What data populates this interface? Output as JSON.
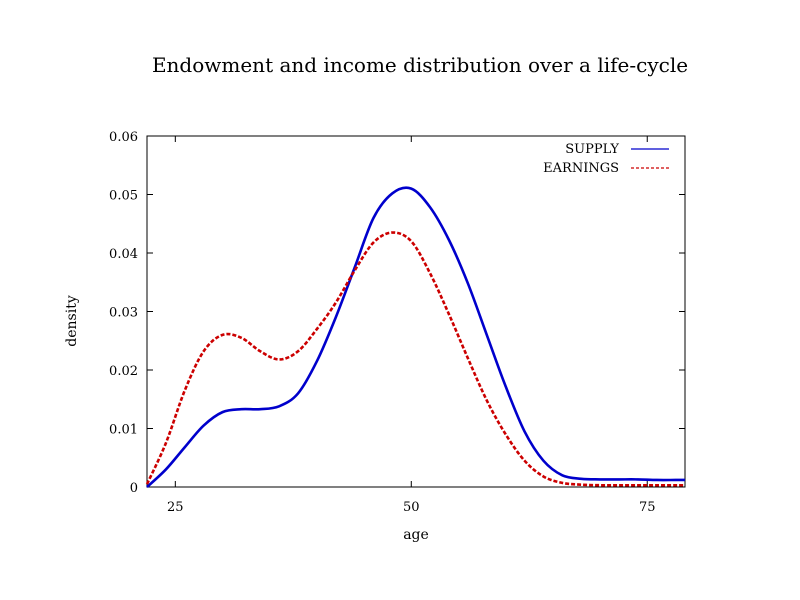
{
  "chart_data": {
    "type": "line",
    "title": "Endowment and income distribution over a life-cycle",
    "xlabel": "age",
    "ylabel": "density",
    "xlim": [
      22,
      79
    ],
    "ylim": [
      0,
      0.06
    ],
    "xticks": [
      25,
      50,
      75
    ],
    "yticks": [
      0,
      0.01,
      0.02,
      0.03,
      0.04,
      0.05,
      0.06
    ],
    "ytick_labels": [
      "0",
      "0.01",
      "0.02",
      "0.03",
      "0.04",
      "0.05",
      "0.06"
    ],
    "grid": false,
    "legend_position": "top-right",
    "x": [
      22,
      24,
      26,
      28,
      30,
      32,
      34,
      36,
      38,
      40,
      42,
      44,
      46,
      48,
      50,
      52,
      54,
      56,
      58,
      60,
      62,
      64,
      66,
      68,
      70,
      72,
      74,
      76,
      78,
      79
    ],
    "series": [
      {
        "name": "SUPPLY",
        "color": "#0000cc",
        "dash": "solid",
        "values": [
          0.0,
          0.003,
          0.0068,
          0.0105,
          0.0128,
          0.0133,
          0.0133,
          0.0138,
          0.016,
          0.0215,
          0.029,
          0.0375,
          0.046,
          0.0502,
          0.051,
          0.0478,
          0.0422,
          0.0348,
          0.026,
          0.0172,
          0.0095,
          0.0045,
          0.002,
          0.0014,
          0.0013,
          0.0013,
          0.0013,
          0.0012,
          0.0012,
          0.0012
        ]
      },
      {
        "name": "EARNINGS",
        "color": "#cc0000",
        "dash": "dashed",
        "values": [
          0.0005,
          0.0075,
          0.0165,
          0.0232,
          0.026,
          0.0255,
          0.0232,
          0.0218,
          0.0232,
          0.027,
          0.0315,
          0.037,
          0.0418,
          0.0435,
          0.042,
          0.0365,
          0.0295,
          0.022,
          0.0148,
          0.009,
          0.0045,
          0.0018,
          0.0007,
          0.0004,
          0.0003,
          0.0003,
          0.0003,
          0.0003,
          0.0003,
          0.0003
        ]
      }
    ]
  }
}
